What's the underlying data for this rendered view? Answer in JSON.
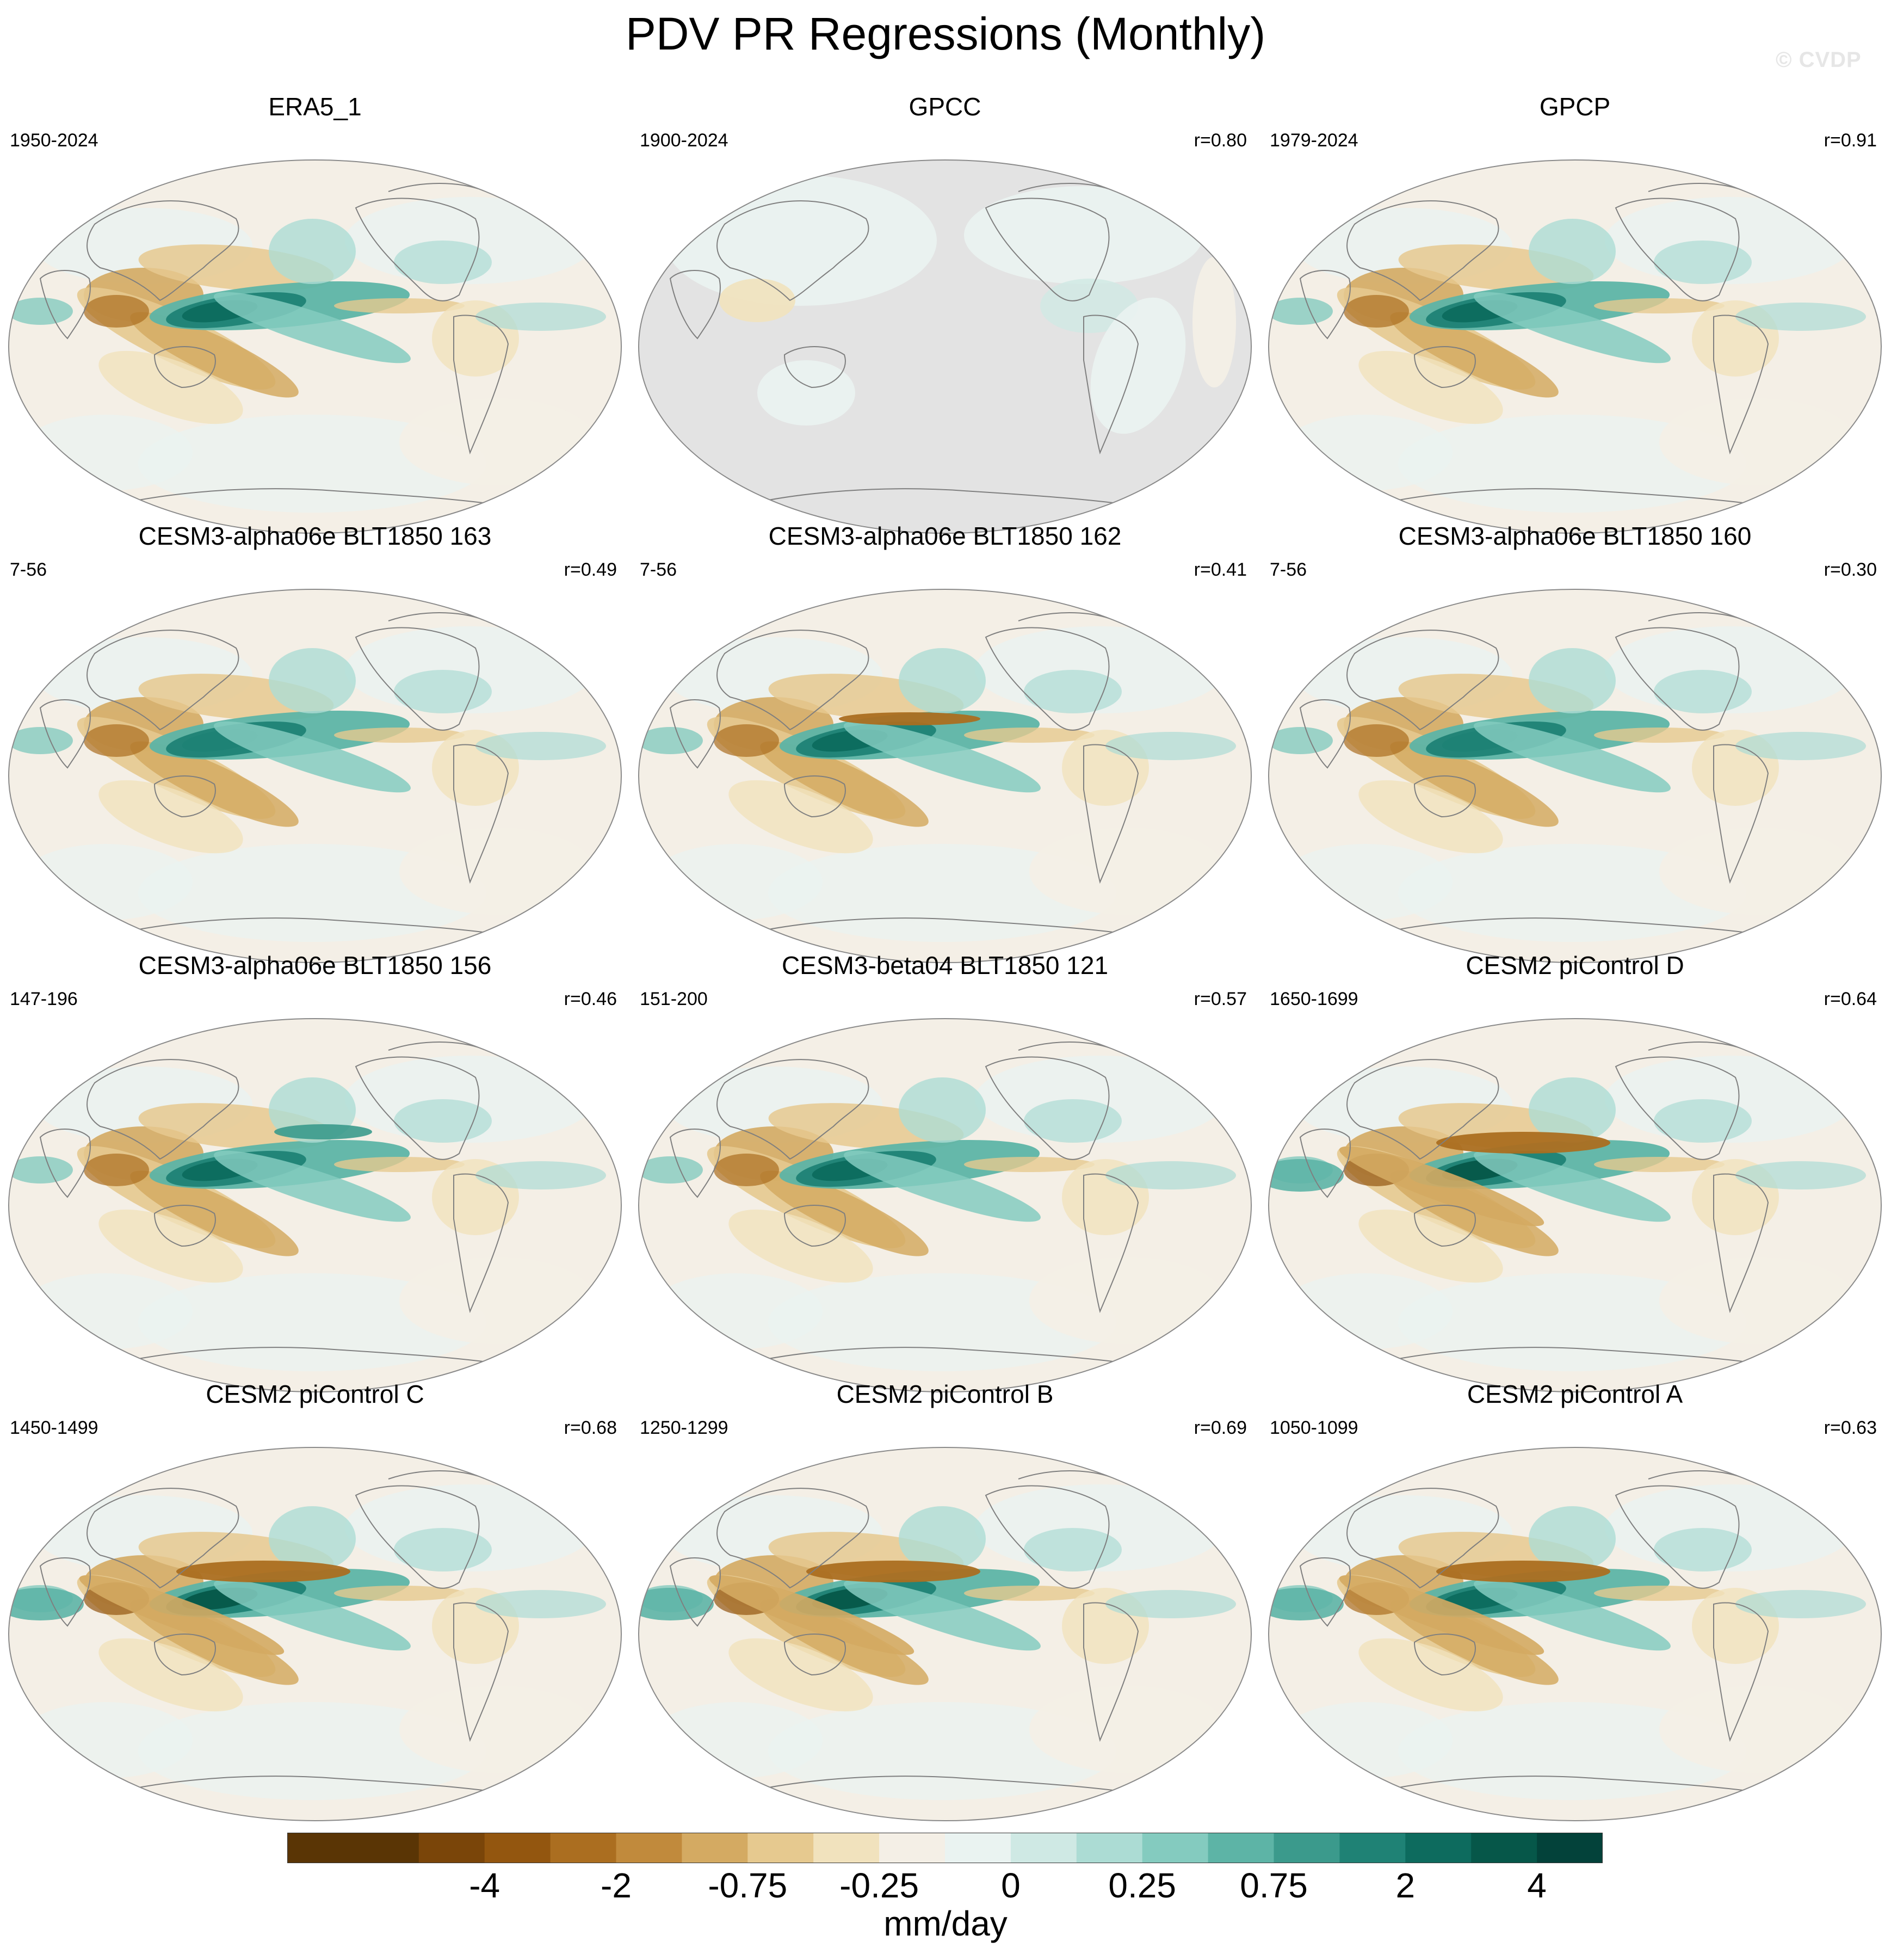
{
  "title": "PDV PR Regressions (Monthly)",
  "watermark": "© CVDP",
  "panels": [
    {
      "title": "ERA5_1",
      "period": "1950-2024",
      "r": "",
      "land_masked": false,
      "style": "era5"
    },
    {
      "title": "GPCC",
      "period": "1900-2024",
      "r": "r=0.80",
      "land_masked": true,
      "style": "gpcc"
    },
    {
      "title": "GPCP",
      "period": "1979-2024",
      "r": "r=0.91",
      "land_masked": false,
      "style": "gpcp"
    },
    {
      "title": "CESM3-alpha06e BLT1850 163",
      "period": "7-56",
      "r": "r=0.49",
      "land_masked": false,
      "style": "a163"
    },
    {
      "title": "CESM3-alpha06e BLT1850 162",
      "period": "7-56",
      "r": "r=0.41",
      "land_masked": false,
      "style": "a162"
    },
    {
      "title": "CESM3-alpha06e BLT1850 160",
      "period": "7-56",
      "r": "r=0.30",
      "land_masked": false,
      "style": "a160"
    },
    {
      "title": "CESM3-alpha06e BLT1850 156",
      "period": "147-196",
      "r": "r=0.46",
      "land_masked": false,
      "style": "a156"
    },
    {
      "title": "CESM3-beta04 BLT1850 121",
      "period": "151-200",
      "r": "r=0.57",
      "land_masked": false,
      "style": "b121"
    },
    {
      "title": "CESM2 piControl D",
      "period": "1650-1699",
      "r": "r=0.64",
      "land_masked": false,
      "style": "cD"
    },
    {
      "title": "CESM2 piControl C",
      "period": "1450-1499",
      "r": "r=0.68",
      "land_masked": false,
      "style": "cC"
    },
    {
      "title": "CESM2 piControl B",
      "period": "1250-1299",
      "r": "r=0.69",
      "land_masked": false,
      "style": "cB"
    },
    {
      "title": "CESM2 piControl A",
      "period": "1050-1099",
      "r": "r=0.63",
      "land_masked": false,
      "style": "cA"
    }
  ],
  "colorbar": {
    "units": "mm/day",
    "colors": [
      "#5a3505",
      "#7a4509",
      "#93560f",
      "#ab6e20",
      "#c18a3c",
      "#d4aa62",
      "#e6c98f",
      "#f1e2bd",
      "#f4efe6",
      "#eaf3f1",
      "#cfe9e4",
      "#acdcd4",
      "#84cbbf",
      "#5db4a6",
      "#3b9a8c",
      "#1f8275",
      "#0d6b5e",
      "#065749",
      "#03423a"
    ],
    "ticks": [
      {
        "label": "-4",
        "index": 2
      },
      {
        "label": "-2",
        "index": 4
      },
      {
        "label": "-0.75",
        "index": 6
      },
      {
        "label": "-0.25",
        "index": 8
      },
      {
        "label": "0",
        "index": 10
      },
      {
        "label": "0.25",
        "index": 12
      },
      {
        "label": "0.75",
        "index": 14
      },
      {
        "label": "2",
        "index": 16
      },
      {
        "label": "4",
        "index": 18
      }
    ]
  }
}
